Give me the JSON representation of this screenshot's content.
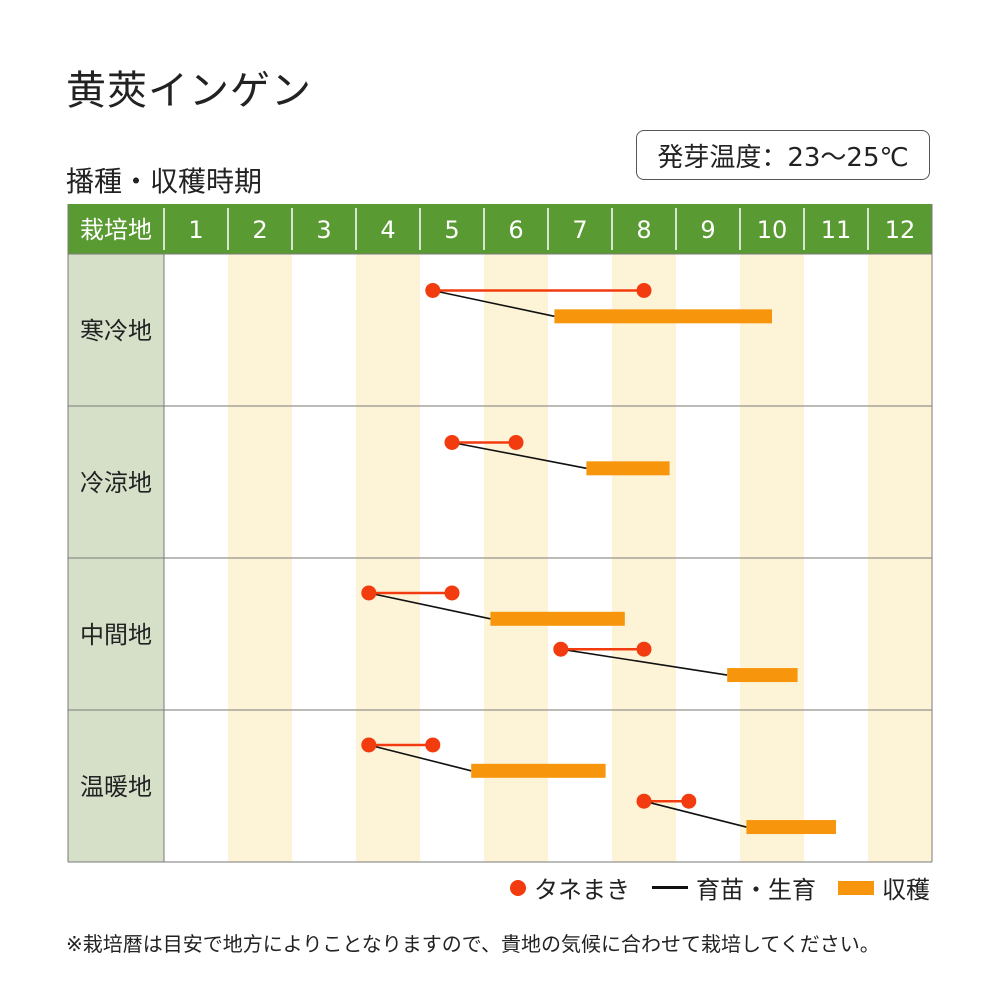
{
  "page": {
    "title": "黄莢インゲン",
    "subtitle": "播種・収穫時期",
    "temperature_badge": "発芽温度：23～25℃",
    "note": "※栽培暦は目安で地方によりことなりますので、貴地の気候に合わせて栽培してください。"
  },
  "colors": {
    "header_green": "#5a9a32",
    "row_label_bg": "#d6e0c8",
    "stripe": "#fdf4d8",
    "sowing": "#f23c0f",
    "harvest": "#f7960d",
    "growing": "#111111",
    "grid": "#7a7a7a"
  },
  "legend": [
    {
      "key": "sowing",
      "label": "タネまき",
      "icon": "dot-icon"
    },
    {
      "key": "growing",
      "label": "育苗・生育",
      "icon": "line-icon"
    },
    {
      "key": "harvest",
      "label": "収穫",
      "icon": "bar-icon"
    }
  ],
  "chart_data": {
    "type": "gantt",
    "header_label": "栽培地",
    "months": [
      "1",
      "2",
      "3",
      "4",
      "5",
      "6",
      "7",
      "8",
      "9",
      "10",
      "11",
      "12"
    ],
    "x_unit": "month",
    "xlim": [
      1,
      13
    ],
    "rows": [
      {
        "region": "寒冷地",
        "plans": [
          {
            "sow": [
              5.2,
              8.5
            ],
            "harvest": [
              7.1,
              10.5
            ]
          }
        ]
      },
      {
        "region": "冷涼地",
        "plans": [
          {
            "sow": [
              5.5,
              6.5
            ],
            "harvest": [
              7.6,
              8.9
            ]
          }
        ]
      },
      {
        "region": "中間地",
        "plans": [
          {
            "sow": [
              4.2,
              5.5
            ],
            "harvest": [
              6.1,
              8.2
            ]
          },
          {
            "sow": [
              7.2,
              8.5
            ],
            "harvest": [
              9.8,
              10.9
            ]
          }
        ]
      },
      {
        "region": "温暖地",
        "plans": [
          {
            "sow": [
              4.2,
              5.2
            ],
            "harvest": [
              5.8,
              7.9
            ]
          },
          {
            "sow": [
              8.5,
              9.2
            ],
            "harvest": [
              10.1,
              11.5
            ]
          }
        ]
      }
    ]
  }
}
